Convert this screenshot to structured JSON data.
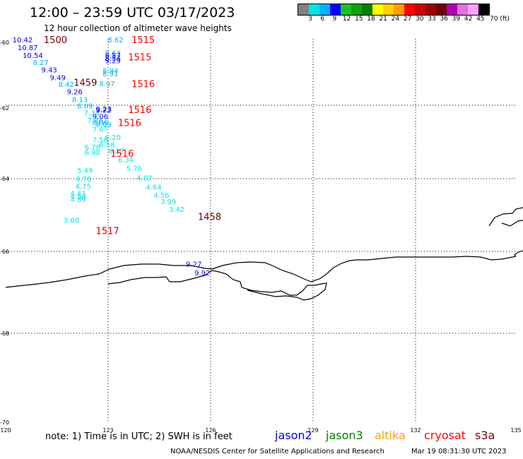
{
  "header": {
    "title": "12:00 – 23:59 UTC 03/17/2023",
    "subtitle": "12 hour collection of altimeter wave heights"
  },
  "color_scale": {
    "swatches": [
      "#808080",
      "#00e5e5",
      "#00b3ff",
      "#0000ff",
      "#20c020",
      "#10a010",
      "#008000",
      "#ffff00",
      "#ffd000",
      "#ffa000",
      "#ff0000",
      "#d00000",
      "#a00000",
      "#700000",
      "#b000b0",
      "#e070e0",
      "#ffa0ff",
      "#000000"
    ],
    "labels": [
      "3",
      "6",
      "9",
      "12",
      "15",
      "18",
      "21",
      "24",
      "27",
      "30",
      "33",
      "36",
      "39",
      "42",
      "45",
      "70 (ft)"
    ]
  },
  "map": {
    "lon_range": [
      120,
      135
    ],
    "lat_range": [
      -70,
      -60
    ],
    "lon_ticks": [
      "120",
      "123",
      "126",
      "129",
      "132",
      "135"
    ],
    "lat_ticks": [
      "-60",
      "-62",
      "-64",
      "-66",
      "-68",
      "-70"
    ],
    "grid": "dotted",
    "coast_color": "#000000",
    "observations": [
      {
        "text": "10.42",
        "lon": 120.2,
        "lat": -60.02,
        "color": "#0000ff"
      },
      {
        "text": "10.87",
        "lon": 120.35,
        "lat": -60.22,
        "color": "#0000ff"
      },
      {
        "text": "10.54",
        "lon": 120.5,
        "lat": -60.42,
        "color": "#0000ff"
      },
      {
        "text": "8.27",
        "lon": 120.8,
        "lat": -60.61,
        "color": "#00b3ff"
      },
      {
        "text": "9.43",
        "lon": 121.05,
        "lat": -60.8,
        "color": "#0000ff"
      },
      {
        "text": "9.49",
        "lon": 121.3,
        "lat": -61.0,
        "color": "#0000ff"
      },
      {
        "text": "8.42",
        "lon": 121.55,
        "lat": -61.18,
        "color": "#00b3ff"
      },
      {
        "text": "9.26",
        "lon": 121.8,
        "lat": -61.37,
        "color": "#0000ff"
      },
      {
        "text": "8.13",
        "lon": 121.95,
        "lat": -61.57,
        "color": "#00b3ff"
      },
      {
        "text": "8.09",
        "lon": 122.1,
        "lat": -61.74,
        "color": "#00b3ff"
      },
      {
        "text": "7.34",
        "lon": 122.3,
        "lat": -61.92,
        "color": "#00e5e5"
      },
      {
        "text": "7.46",
        "lon": 122.4,
        "lat": -62.12,
        "color": "#00e5e5"
      },
      {
        "text": "7.67",
        "lon": 122.55,
        "lat": -62.35,
        "color": "#00e5e5"
      },
      {
        "text": "7.56",
        "lon": 122.55,
        "lat": -62.62,
        "color": "#00e5e5"
      },
      {
        "text": "6.20",
        "lon": 122.92,
        "lat": -62.56,
        "color": "#00e5e5"
      },
      {
        "text": "6.78",
        "lon": 122.32,
        "lat": -62.82,
        "color": "#00e5e5"
      },
      {
        "text": "6.58",
        "lon": 122.75,
        "lat": -62.75,
        "color": "#00e5e5"
      },
      {
        "text": "6.98",
        "lon": 122.32,
        "lat": -62.96,
        "color": "#00e5e5"
      },
      {
        "text": "6.22",
        "lon": 123.02,
        "lat": -62.92,
        "color": "#00e5e5"
      },
      {
        "text": "6.34",
        "lon": 123.3,
        "lat": -63.15,
        "color": "#00e5e5"
      },
      {
        "text": "5.76",
        "lon": 123.55,
        "lat": -63.37,
        "color": "#00e5e5"
      },
      {
        "text": "5.49",
        "lon": 122.1,
        "lat": -63.43,
        "color": "#00e5e5"
      },
      {
        "text": "4.76",
        "lon": 122.05,
        "lat": -63.65,
        "color": "#00e5e5"
      },
      {
        "text": "4.02",
        "lon": 123.85,
        "lat": -63.62,
        "color": "#00e5e5"
      },
      {
        "text": "4.75",
        "lon": 122.05,
        "lat": -63.84,
        "color": "#00e5e5"
      },
      {
        "text": "4.64",
        "lon": 124.12,
        "lat": -63.86,
        "color": "#00e5e5"
      },
      {
        "text": "4.41",
        "lon": 121.9,
        "lat": -64.02,
        "color": "#00e5e5"
      },
      {
        "text": "4.54",
        "lon": 121.9,
        "lat": -64.1,
        "color": "#00e5e5"
      },
      {
        "text": "4.89",
        "lon": 121.9,
        "lat": -64.18,
        "color": "#00e5e5"
      },
      {
        "text": "4.56",
        "lon": 124.35,
        "lat": -64.07,
        "color": "#00e5e5"
      },
      {
        "text": "3.99",
        "lon": 124.55,
        "lat": -64.24,
        "color": "#00e5e5"
      },
      {
        "text": "3.42",
        "lon": 124.8,
        "lat": -64.44,
        "color": "#00e5e5"
      },
      {
        "text": "3.60",
        "lon": 121.7,
        "lat": -64.72,
        "color": "#00e5e5"
      },
      {
        "text": "8.62",
        "lon": 123.0,
        "lat": -60.02,
        "color": "#00b3ff"
      },
      {
        "text": "8.63",
        "lon": 122.92,
        "lat": -60.37,
        "color": "#00b3ff"
      },
      {
        "text": "8.57",
        "lon": 122.92,
        "lat": -60.42,
        "color": "#0000ff"
      },
      {
        "text": "8.54",
        "lon": 122.92,
        "lat": -60.5,
        "color": "#0000ff"
      },
      {
        "text": "9.29",
        "lon": 122.92,
        "lat": -60.56,
        "color": "#0000ff"
      },
      {
        "text": "8.94",
        "lon": 122.85,
        "lat": -60.82,
        "color": "#00b3ff"
      },
      {
        "text": "8.91",
        "lon": 122.85,
        "lat": -60.9,
        "color": "#00b3ff"
      },
      {
        "text": "8.97",
        "lon": 122.75,
        "lat": -61.16,
        "color": "#00b3ff"
      },
      {
        "text": "9.23",
        "lon": 122.65,
        "lat": -61.82,
        "color": "#0000ff"
      },
      {
        "text": "9.22",
        "lon": 122.65,
        "lat": -61.85,
        "color": "#0000ff"
      },
      {
        "text": "9.06",
        "lon": 122.55,
        "lat": -62.02,
        "color": "#0000ff"
      },
      {
        "text": "8.06",
        "lon": 122.55,
        "lat": -62.17,
        "color": "#00b3ff"
      },
      {
        "text": "8.09",
        "lon": 122.65,
        "lat": -62.22,
        "color": "#00b3ff"
      },
      {
        "text": "9.27",
        "lon": 125.3,
        "lat": -65.87,
        "color": "#0000ff"
      },
      {
        "text": "9.92",
        "lon": 125.55,
        "lat": -66.1,
        "color": "#0000ff"
      }
    ],
    "times": [
      {
        "text": "1500",
        "lon": 121.12,
        "lat": -60.02,
        "color": "#700000"
      },
      {
        "text": "1515",
        "lon": 123.7,
        "lat": -60.02,
        "color": "#ff0000"
      },
      {
        "text": "1515",
        "lon": 123.6,
        "lat": -60.47,
        "color": "#ff0000"
      },
      {
        "text": "1459",
        "lon": 122.0,
        "lat": -61.13,
        "color": "#700000"
      },
      {
        "text": "1516",
        "lon": 123.7,
        "lat": -61.17,
        "color": "#ff0000"
      },
      {
        "text": "1516",
        "lon": 123.6,
        "lat": -61.84,
        "color": "#ff0000"
      },
      {
        "text": "1516",
        "lon": 123.3,
        "lat": -62.18,
        "color": "#ff0000"
      },
      {
        "text": "1516",
        "lon": 123.08,
        "lat": -62.98,
        "color": "#ff0000"
      },
      {
        "text": "1458",
        "lon": 125.65,
        "lat": -64.63,
        "color": "#700000"
      },
      {
        "text": "1517",
        "lon": 122.65,
        "lat": -65.0,
        "color": "#d00000"
      }
    ]
  },
  "footer": {
    "note": "note:  1) Time is in UTC;  2) SWH is in feet",
    "missions": [
      {
        "name": "jason2",
        "color": "#0000ff"
      },
      {
        "name": "jason3",
        "color": "#008000"
      },
      {
        "name": "altika",
        "color": "#ffa000"
      },
      {
        "name": "cryosat",
        "color": "#ff0000"
      },
      {
        "name": "s3a",
        "color": "#800000"
      }
    ],
    "credit": "NOAA/NESDIS Center for Satellite Applications and Research",
    "timestamp": "Mar 19 08:31:30 UTC 2023"
  }
}
